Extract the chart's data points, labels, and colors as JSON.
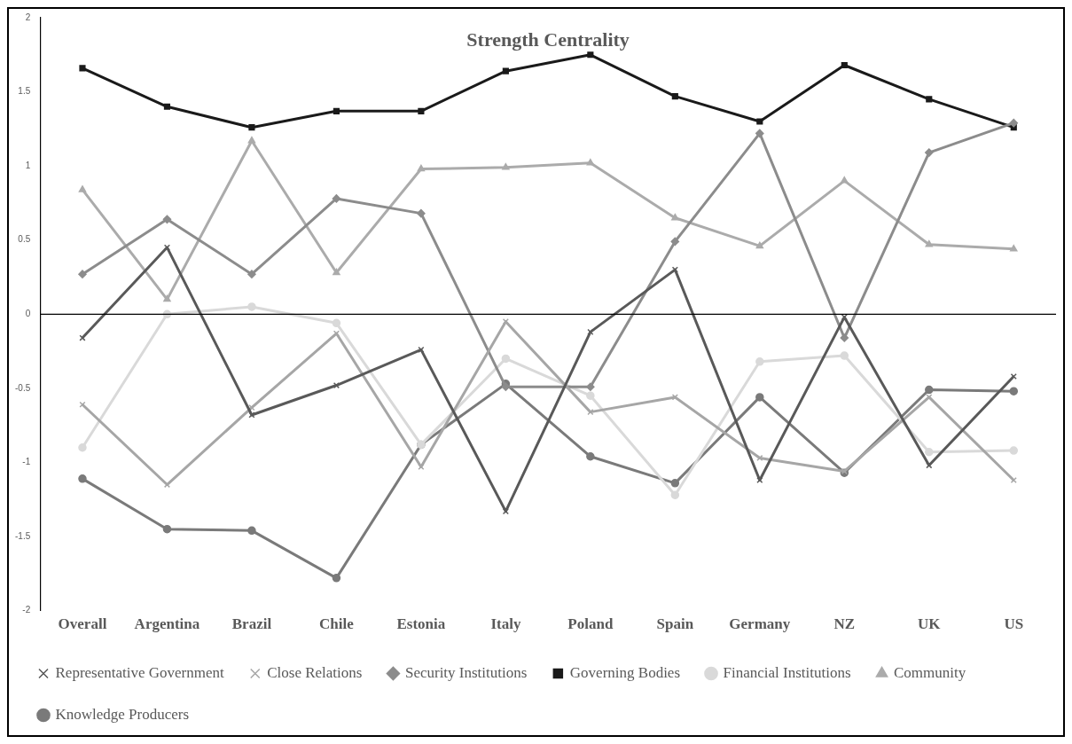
{
  "chart_data": {
    "type": "line",
    "title": "Strength Centrality",
    "categories": [
      "Overall",
      "Argentina",
      "Brazil",
      "Chile",
      "Estonia",
      "Italy",
      "Poland",
      "Spain",
      "Germany",
      "NZ",
      "UK",
      "US"
    ],
    "series": [
      {
        "name": "Representative Government",
        "color": "#595959",
        "marker": "cross",
        "values": [
          -0.16,
          0.45,
          -0.68,
          -0.48,
          -0.24,
          -1.33,
          -0.12,
          0.3,
          -1.12,
          -0.02,
          -1.02,
          -0.42
        ]
      },
      {
        "name": "Close Relations",
        "color": "#a6a6a6",
        "marker": "cross",
        "values": [
          -0.61,
          -1.15,
          -0.63,
          -0.13,
          -1.03,
          -0.05,
          -0.66,
          -0.56,
          -0.97,
          -1.06,
          -0.56,
          -1.12
        ]
      },
      {
        "name": "Security Institutions",
        "color": "#8c8c8c",
        "marker": "diamond",
        "values": [
          0.27,
          0.64,
          0.27,
          0.78,
          0.68,
          -0.49,
          -0.49,
          0.49,
          1.22,
          -0.16,
          1.09,
          1.29
        ]
      },
      {
        "name": "Governing Bodies",
        "color": "#1a1a1a",
        "marker": "square",
        "values": [
          1.66,
          1.4,
          1.26,
          1.37,
          1.37,
          1.64,
          1.75,
          1.47,
          1.3,
          1.68,
          1.45,
          1.26
        ]
      },
      {
        "name": "Financial Institutions",
        "color": "#d9d9d9",
        "marker": "circle",
        "values": [
          -0.9,
          0.0,
          0.05,
          -0.06,
          -0.88,
          -0.3,
          -0.55,
          -1.22,
          -0.32,
          -0.28,
          -0.93,
          -0.92
        ]
      },
      {
        "name": "Community",
        "color": "#ababab",
        "marker": "triangle",
        "values": [
          0.84,
          0.1,
          1.17,
          0.28,
          0.98,
          0.99,
          1.02,
          0.65,
          0.46,
          0.9,
          0.47,
          0.44
        ]
      },
      {
        "name": "Knowledge Producers",
        "color": "#7a7a7a",
        "marker": "circle",
        "values": [
          -1.11,
          -1.45,
          -1.46,
          -1.78,
          -0.88,
          -0.47,
          -0.96,
          -1.14,
          -0.56,
          -1.07,
          -0.51,
          -0.52
        ]
      }
    ],
    "ylim": [
      -2,
      2
    ],
    "yticks": [
      -2,
      -1.5,
      -1,
      -0.5,
      0,
      0.5,
      1,
      1.5,
      2
    ],
    "grid": false,
    "ref_lines": [
      {
        "axis": "y",
        "value": 0,
        "color": "#000000"
      }
    ],
    "legend": "bottom",
    "line_style": "solid"
  }
}
